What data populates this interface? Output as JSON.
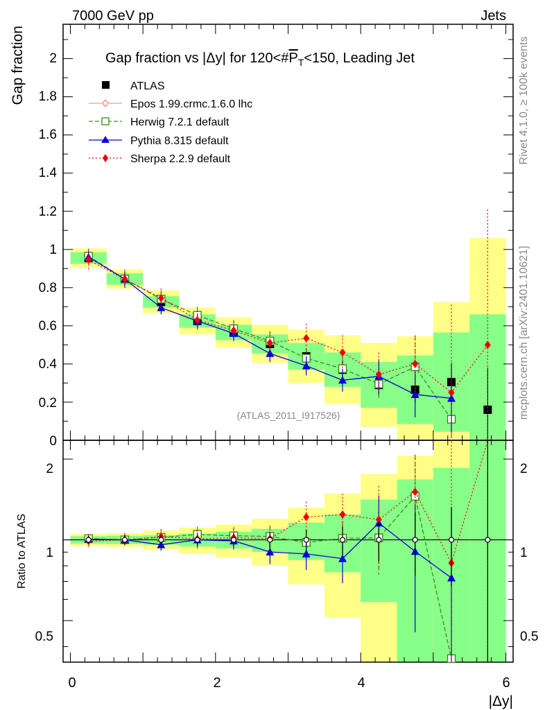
{
  "header": {
    "left": "7000 GeV pp",
    "right": "Jets",
    "rivet": "Rivet 4.1.0, ≥ 100k events",
    "mcplots": "mcplots.cern.ch [arXiv:2401.10621]"
  },
  "chart_data": {
    "type": "line",
    "title": "Gap fraction vs |Δy| for 120<#P_T<150, Leading Jet",
    "title_parts": {
      "pre": "Gap fraction vs |Δy| for 120<#",
      "p": "P",
      "sub": "T",
      "post": "<150, Leading Jet"
    },
    "analysis_id": "(ATLAS_2011_I917526)",
    "xlabel": "|Δy|",
    "ylabel": "Gap fraction",
    "ratio_ylabel": "Ratio to ATLAS",
    "xlim": [
      -0.1,
      6.1
    ],
    "ylim": [
      0,
      2.18
    ],
    "ratio_ylim": [
      0.35,
      2.35
    ],
    "ratio_scale": "log",
    "x_ticks": [
      "0",
      "2",
      "4",
      "6"
    ],
    "y_ticks": [
      "0",
      "0.2",
      "0.4",
      "0.6",
      "0.8",
      "1",
      "1.2",
      "1.4",
      "1.6",
      "1.8",
      "2"
    ],
    "ratio_ticks": [
      "0.5",
      "1",
      "2"
    ],
    "x": [
      0.25,
      0.75,
      1.25,
      1.75,
      2.25,
      2.75,
      3.25,
      3.75,
      4.25,
      4.75,
      5.25,
      5.75
    ],
    "data": {
      "name": "ATLAS",
      "values": [
        0.955,
        0.845,
        0.725,
        0.625,
        0.565,
        0.505,
        0.44,
        0.37,
        0.29,
        0.265,
        0.305,
        0.16
      ],
      "errors": [
        0.03,
        0.03,
        0.03,
        0.03,
        0.03,
        0.035,
        0.04,
        0.045,
        0.05,
        0.07,
        0.1,
        0.22
      ],
      "band_inner": [
        0.03,
        0.03,
        0.03,
        0.035,
        0.04,
        0.05,
        0.07,
        0.09,
        0.12,
        0.18,
        0.26,
        0.5
      ],
      "band_outer": [
        0.05,
        0.05,
        0.06,
        0.07,
        0.08,
        0.1,
        0.14,
        0.18,
        0.22,
        0.28,
        0.42,
        0.9
      ]
    },
    "series": [
      {
        "name": "Epos 1.99.crmc.1.6.0 lhc",
        "color": "#f08080",
        "dash": "",
        "marker": "open-circle",
        "values": [
          null,
          null,
          null,
          null,
          null,
          null,
          null,
          null,
          null,
          null,
          null,
          null
        ],
        "errors": [
          null,
          null,
          null,
          null,
          null,
          null,
          null,
          null,
          null,
          null,
          null,
          null
        ]
      },
      {
        "name": "Herwig 7.2.1 default",
        "color": "#3a8a1a",
        "dash": "6,3",
        "marker": "open-square",
        "values": [
          0.965,
          0.845,
          0.74,
          0.655,
          0.585,
          0.52,
          0.43,
          0.375,
          0.295,
          0.385,
          0.11,
          null
        ],
        "errors": [
          0.04,
          0.04,
          0.045,
          0.045,
          0.045,
          0.05,
          0.05,
          0.06,
          0.08,
          0.16,
          0.12,
          null
        ]
      },
      {
        "name": "Pythia 8.315 default",
        "color": "#0000dd",
        "dash": "",
        "marker": "triangle",
        "values": [
          0.96,
          0.845,
          0.695,
          0.625,
          0.56,
          0.455,
          0.39,
          0.315,
          0.335,
          0.24,
          0.22,
          null
        ],
        "errors": [
          0.03,
          0.04,
          0.035,
          0.04,
          0.04,
          0.045,
          0.05,
          0.06,
          0.09,
          0.12,
          0.18,
          null
        ]
      },
      {
        "name": "Sherpa 2.2.9 default",
        "color": "#ee0000",
        "dash": "2,3",
        "marker": "diamond",
        "values": [
          0.945,
          0.845,
          0.745,
          0.63,
          0.575,
          0.51,
          0.535,
          0.46,
          0.345,
          0.4,
          0.25,
          0.5
        ],
        "errors": [
          0.05,
          0.05,
          0.05,
          0.05,
          0.05,
          0.06,
          0.075,
          0.09,
          0.115,
          0.15,
          0.46,
          0.71
        ]
      }
    ]
  }
}
